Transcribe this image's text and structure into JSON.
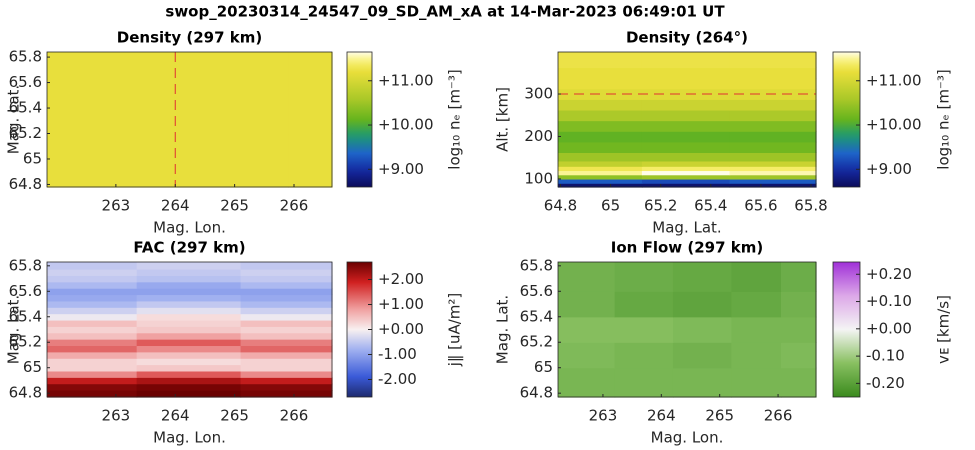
{
  "title": "swop_20230314_24547_09_SD_AM_xA at 14-Mar-2023 06:49:01 UT",
  "chart_data": [
    {
      "type": "heatmap",
      "title": "Density (297 km)",
      "xlabel": "Mag. Lon.",
      "ylabel": "Mag. Lat.",
      "colorbar_label": "log₁₀ nₑ [m⁻³]",
      "colormap": "density",
      "x": [
        262.5,
        263.5,
        264.5,
        265.5,
        266.3
      ],
      "y": [
        65.0,
        65.4,
        65.7
      ],
      "z": [
        [
          11.2,
          11.2,
          11.2,
          11.2,
          11.2
        ],
        [
          11.2,
          11.2,
          11.2,
          11.2,
          11.2
        ],
        [
          11.2,
          11.2,
          11.2,
          11.2,
          11.2
        ]
      ],
      "vline": 264,
      "xlim": [
        261.84,
        266.64
      ],
      "ylim": [
        64.78,
        65.84
      ],
      "xticks": [
        263,
        264,
        265,
        266
      ],
      "yticks": [
        64.8,
        65,
        65.2,
        65.4,
        65.6,
        65.8
      ],
      "clim": [
        8.6,
        11.65
      ],
      "cticks": [
        {
          "value": 9,
          "label": "+9.00"
        },
        {
          "value": 10,
          "label": "+10.00"
        },
        {
          "value": 11,
          "label": "+11.00"
        }
      ]
    },
    {
      "type": "heatmap",
      "title": "Density (264°)",
      "xlabel": "Mag. Lat.",
      "ylabel": "Alt. [km]",
      "colorbar_label": "log₁₀ nₑ [m⁻³]",
      "colormap": "density",
      "x": [
        64.95,
        65.3,
        65.65
      ],
      "y": [
        85,
        95,
        105,
        115,
        125,
        135,
        150,
        175,
        200,
        225,
        250,
        275,
        300,
        325,
        350,
        375,
        395
      ],
      "z": [
        [
          8.7,
          8.7,
          8.7
        ],
        [
          9.3,
          9.2,
          9.3
        ],
        [
          10.4,
          10.5,
          10.5
        ],
        [
          11.5,
          11.65,
          11.55
        ],
        [
          11.3,
          11.4,
          11.4
        ],
        [
          10.8,
          10.9,
          10.9
        ],
        [
          10.5,
          10.5,
          10.5
        ],
        [
          10.2,
          10.2,
          10.2
        ],
        [
          10.1,
          10.1,
          10.1
        ],
        [
          10.3,
          10.3,
          10.3
        ],
        [
          10.6,
          10.6,
          10.6
        ],
        [
          10.9,
          10.9,
          10.9
        ],
        [
          11.1,
          11.1,
          11.1
        ],
        [
          11.2,
          11.2,
          11.2
        ],
        [
          11.2,
          11.2,
          11.2
        ],
        [
          11.25,
          11.25,
          11.25
        ],
        [
          11.25,
          11.25,
          11.25
        ]
      ],
      "hline": 300,
      "xlim": [
        64.79,
        65.82
      ],
      "ylim": [
        81,
        399
      ],
      "xticks": [
        64.8,
        65,
        65.2,
        65.4,
        65.6,
        65.8
      ],
      "yticks": [
        100,
        200,
        300
      ],
      "clim": [
        8.6,
        11.65
      ],
      "cticks": [
        {
          "value": 9,
          "label": "+9.00"
        },
        {
          "value": 10,
          "label": "+10.00"
        },
        {
          "value": 11,
          "label": "+11.00"
        }
      ]
    },
    {
      "type": "heatmap",
      "title": "FAC (297 km)",
      "xlabel": "Mag. Lon.",
      "ylabel": "Mag. Lat.",
      "colorbar_label": "j‖ [uA/m²]",
      "colormap": "bwr",
      "x": [
        262.5,
        264.2,
        266
      ],
      "y": [
        64.8,
        64.85,
        64.9,
        64.95,
        65.0,
        65.05,
        65.1,
        65.15,
        65.2,
        65.25,
        65.3,
        65.35,
        65.4,
        65.45,
        65.5,
        65.55,
        65.6,
        65.65,
        65.7,
        65.75,
        65.8
      ],
      "z": [
        [
          2.6,
          2.7,
          2.6
        ],
        [
          2.5,
          2.6,
          2.5
        ],
        [
          2.0,
          2.2,
          2.0
        ],
        [
          1.0,
          1.4,
          1.0
        ],
        [
          0.3,
          0.4,
          0.3
        ],
        [
          0.3,
          0.2,
          0.3
        ],
        [
          0.7,
          0.5,
          0.7
        ],
        [
          1.3,
          1.0,
          1.3
        ],
        [
          1.1,
          1.4,
          1.1
        ],
        [
          0.5,
          0.8,
          0.5
        ],
        [
          0.3,
          0.4,
          0.3
        ],
        [
          0.5,
          0.3,
          0.5
        ],
        [
          -0.1,
          0.2,
          -0.1
        ],
        [
          -0.4,
          -0.2,
          -0.4
        ],
        [
          -0.7,
          -0.5,
          -0.7
        ],
        [
          -0.9,
          -0.8,
          -0.9
        ],
        [
          -1.0,
          -1.0,
          -1.0
        ],
        [
          -0.7,
          -0.9,
          -0.7
        ],
        [
          -0.5,
          -0.6,
          -0.5
        ],
        [
          -0.4,
          -0.5,
          -0.4
        ],
        [
          -0.5,
          -0.4,
          -0.5
        ]
      ],
      "xlim": [
        261.84,
        266.64
      ],
      "ylim": [
        64.77,
        65.83
      ],
      "xticks": [
        263,
        264,
        265,
        266
      ],
      "yticks": [
        64.8,
        65,
        65.2,
        65.4,
        65.6,
        65.8
      ],
      "clim": [
        -2.7,
        2.7
      ],
      "cticks": [
        {
          "value": -2,
          "label": "-2.00"
        },
        {
          "value": -1,
          "label": "-1.00"
        },
        {
          "value": 0,
          "label": "+0.00"
        },
        {
          "value": 1,
          "label": "+1.00"
        },
        {
          "value": 2,
          "label": "+2.00"
        }
      ]
    },
    {
      "type": "heatmap",
      "title": "Ion Flow (297 km)",
      "xlabel": "Mag. Lon.",
      "ylabel": "Mag. Lat.",
      "colorbar_label": "vᴇ [km/s]",
      "colormap": "gwp",
      "x": [
        262.7,
        263.7,
        264.7,
        265.7,
        266.4
      ],
      "y": [
        64.9,
        65.1,
        65.3,
        65.5,
        65.7
      ],
      "z": [
        [
          -0.15,
          -0.15,
          -0.15,
          -0.15,
          -0.15
        ],
        [
          -0.14,
          -0.15,
          -0.16,
          -0.15,
          -0.14
        ],
        [
          -0.13,
          -0.13,
          -0.14,
          -0.15,
          -0.15
        ],
        [
          -0.16,
          -0.18,
          -0.19,
          -0.18,
          -0.16
        ],
        [
          -0.16,
          -0.17,
          -0.18,
          -0.19,
          -0.17
        ]
      ],
      "xlim": [
        262.23,
        266.65
      ],
      "ylim": [
        64.77,
        65.83
      ],
      "xticks": [
        263,
        264,
        265,
        266
      ],
      "yticks": [
        64.8,
        65,
        65.2,
        65.4,
        65.6,
        65.8
      ],
      "clim": [
        -0.25,
        0.245
      ],
      "cticks": [
        {
          "value": -0.2,
          "label": "-0.20"
        },
        {
          "value": -0.1,
          "label": "-0.10"
        },
        {
          "value": 0,
          "label": "+0.00"
        },
        {
          "value": 0.1,
          "label": "+0.10"
        },
        {
          "value": 0.2,
          "label": "+0.20"
        }
      ]
    }
  ]
}
